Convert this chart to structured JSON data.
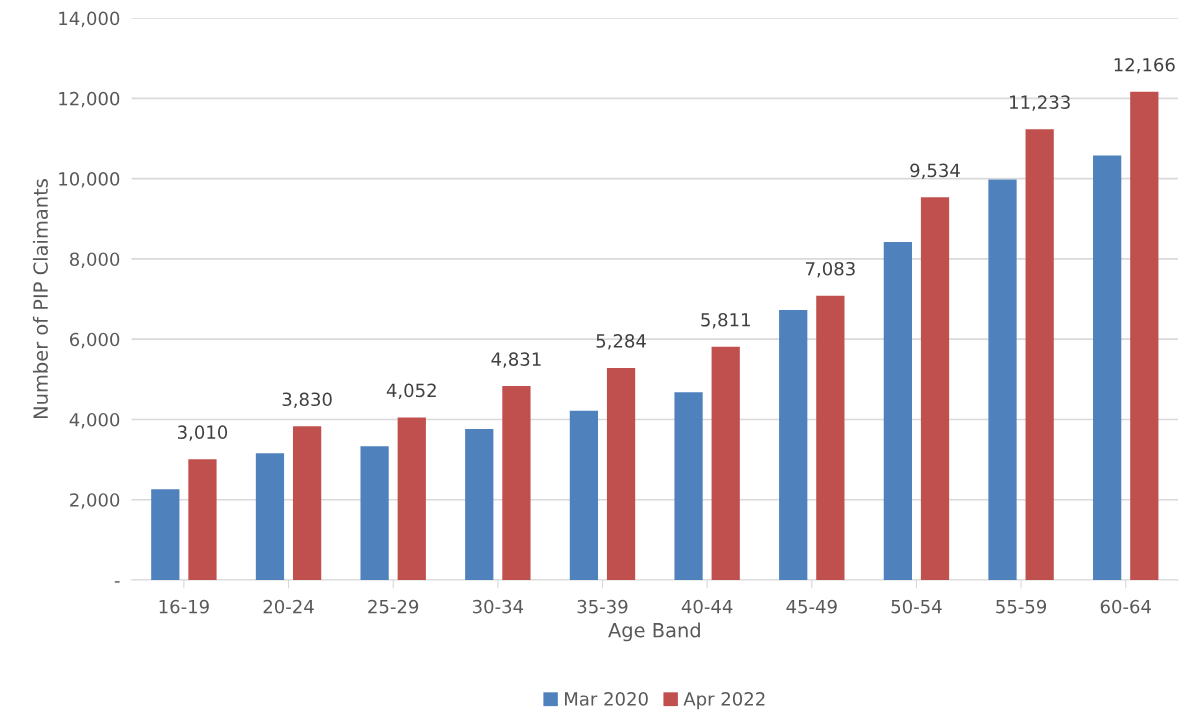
{
  "chart_data": {
    "type": "bar",
    "xlabel": "Age Band",
    "ylabel": "Number of PIP Claimants",
    "categories": [
      "16-19",
      "20-24",
      "25-29",
      "30-34",
      "35-39",
      "40-44",
      "45-49",
      "50-54",
      "55-59",
      "60-64"
    ],
    "series": [
      {
        "name": "Mar 2020",
        "color": "#4f81bd",
        "values": [
          2260,
          3160,
          3330,
          3760,
          4220,
          4680,
          6730,
          8420,
          9980,
          10580
        ]
      },
      {
        "name": "Apr 2022",
        "color": "#c0504d",
        "values": [
          3010,
          3830,
          4052,
          4831,
          5284,
          5811,
          7083,
          9534,
          11233,
          12166
        ],
        "value_labels": [
          "3,010",
          "3,830",
          "4,052",
          "4,831",
          "5,284",
          "5,811",
          "7,083",
          "9,534",
          "11,233",
          "12,166"
        ]
      }
    ],
    "ylim": [
      0,
      14000
    ],
    "yticks": [
      {
        "value": 0,
        "label": "-"
      },
      {
        "value": 2000,
        "label": "2,000"
      },
      {
        "value": 4000,
        "label": "4,000"
      },
      {
        "value": 6000,
        "label": "6,000"
      },
      {
        "value": 8000,
        "label": "8,000"
      },
      {
        "value": 10000,
        "label": "10,000"
      },
      {
        "value": 12000,
        "label": "12,000"
      },
      {
        "value": 14000,
        "label": "14,000"
      }
    ],
    "grid": "y",
    "legend": "bottom"
  }
}
